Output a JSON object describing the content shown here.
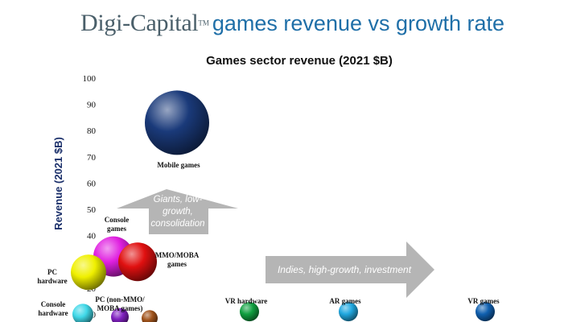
{
  "header": {
    "brand": "Digi-Capital",
    "trademark": "TM",
    "headline": "games revenue vs growth rate"
  },
  "chart_data": {
    "type": "scatter",
    "title": "Games sector revenue (2021 $B)",
    "ylabel": "Revenue (2021 $B)",
    "ylim": [
      0,
      100
    ],
    "yticks": [
      10,
      20,
      30,
      40,
      50,
      60,
      70,
      80,
      90,
      100
    ],
    "points": [
      {
        "label": "Mobile games",
        "y": 83,
        "color": "#1a3a7a"
      },
      {
        "label": "Console games",
        "y": 32,
        "color": "#e020e0"
      },
      {
        "label": "MMO/MOBA games",
        "y": 30,
        "color": "#e01010"
      },
      {
        "label": "PC hardware",
        "y": 26,
        "color": "#f0f000"
      },
      {
        "label": "Console hardware",
        "y": 10,
        "color": "#40d8e8"
      },
      {
        "label": "PC (non-MMO/ MOBA games)",
        "y": 9,
        "color": "#8020c0"
      },
      {
        "label": "",
        "y": 8.5,
        "color": "#a0521a"
      },
      {
        "label": "VR hardware",
        "y": 11,
        "color": "#10a040"
      },
      {
        "label": "AR games",
        "y": 11,
        "color": "#20a8e0"
      },
      {
        "label": "VR games",
        "y": 11,
        "color": "#1060b0"
      }
    ],
    "annotations": {
      "up_arrow": "Giants, low-growth, consolidation",
      "right_arrow": "Indies, high-growth, investment"
    }
  }
}
